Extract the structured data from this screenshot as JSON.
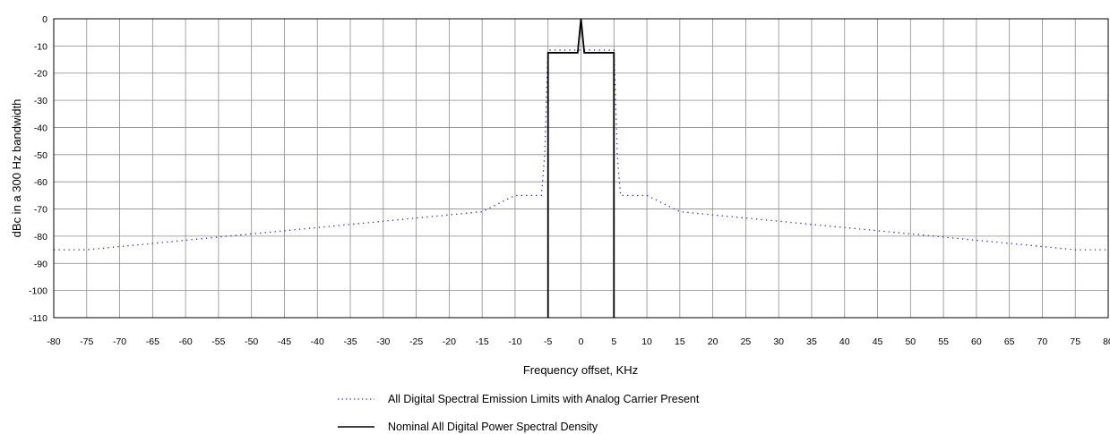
{
  "chart_data": {
    "type": "line",
    "title": "",
    "xlabel": "Frequency offset, KHz",
    "ylabel": "dBc in a 300 Hz bandwidth",
    "xlim": [
      -80,
      80
    ],
    "ylim": [
      -110,
      0
    ],
    "x_ticks": [
      -80,
      -75,
      -70,
      -65,
      -60,
      -55,
      -50,
      -45,
      -40,
      -35,
      -30,
      -25,
      -20,
      -15,
      -10,
      -5,
      0,
      5,
      10,
      15,
      20,
      25,
      30,
      35,
      40,
      45,
      50,
      55,
      60,
      65,
      70,
      75,
      80
    ],
    "y_ticks": [
      0,
      -10,
      -20,
      -30,
      -40,
      -50,
      -60,
      -70,
      -80,
      -90,
      -100,
      -110
    ],
    "grid": true,
    "legend_position": "bottom-center",
    "series": [
      {
        "name": "All Digital Spectral Emission Limits with Analog Carrier Present",
        "style": "dotted",
        "color": "#2b2bbf",
        "points": [
          [
            -80,
            -85
          ],
          [
            -75,
            -85
          ],
          [
            -15,
            -71
          ],
          [
            -10,
            -65
          ],
          [
            -6,
            -65
          ],
          [
            -5.5,
            -50
          ],
          [
            -5.2,
            -25
          ],
          [
            -5,
            -11.5
          ],
          [
            5,
            -11.5
          ],
          [
            5.2,
            -25
          ],
          [
            5.5,
            -50
          ],
          [
            6,
            -65
          ],
          [
            10,
            -65
          ],
          [
            15,
            -71
          ],
          [
            75,
            -85
          ],
          [
            80,
            -85
          ]
        ]
      },
      {
        "name": "Nominal All Digital Power Spectral Density",
        "style": "solid",
        "color": "#000000",
        "points": [
          [
            -5,
            -110
          ],
          [
            -5,
            -12.5
          ],
          [
            -0.5,
            -12.5
          ],
          [
            0,
            0
          ],
          [
            0.5,
            -12.5
          ],
          [
            5,
            -12.5
          ],
          [
            5,
            -110
          ]
        ]
      }
    ]
  }
}
